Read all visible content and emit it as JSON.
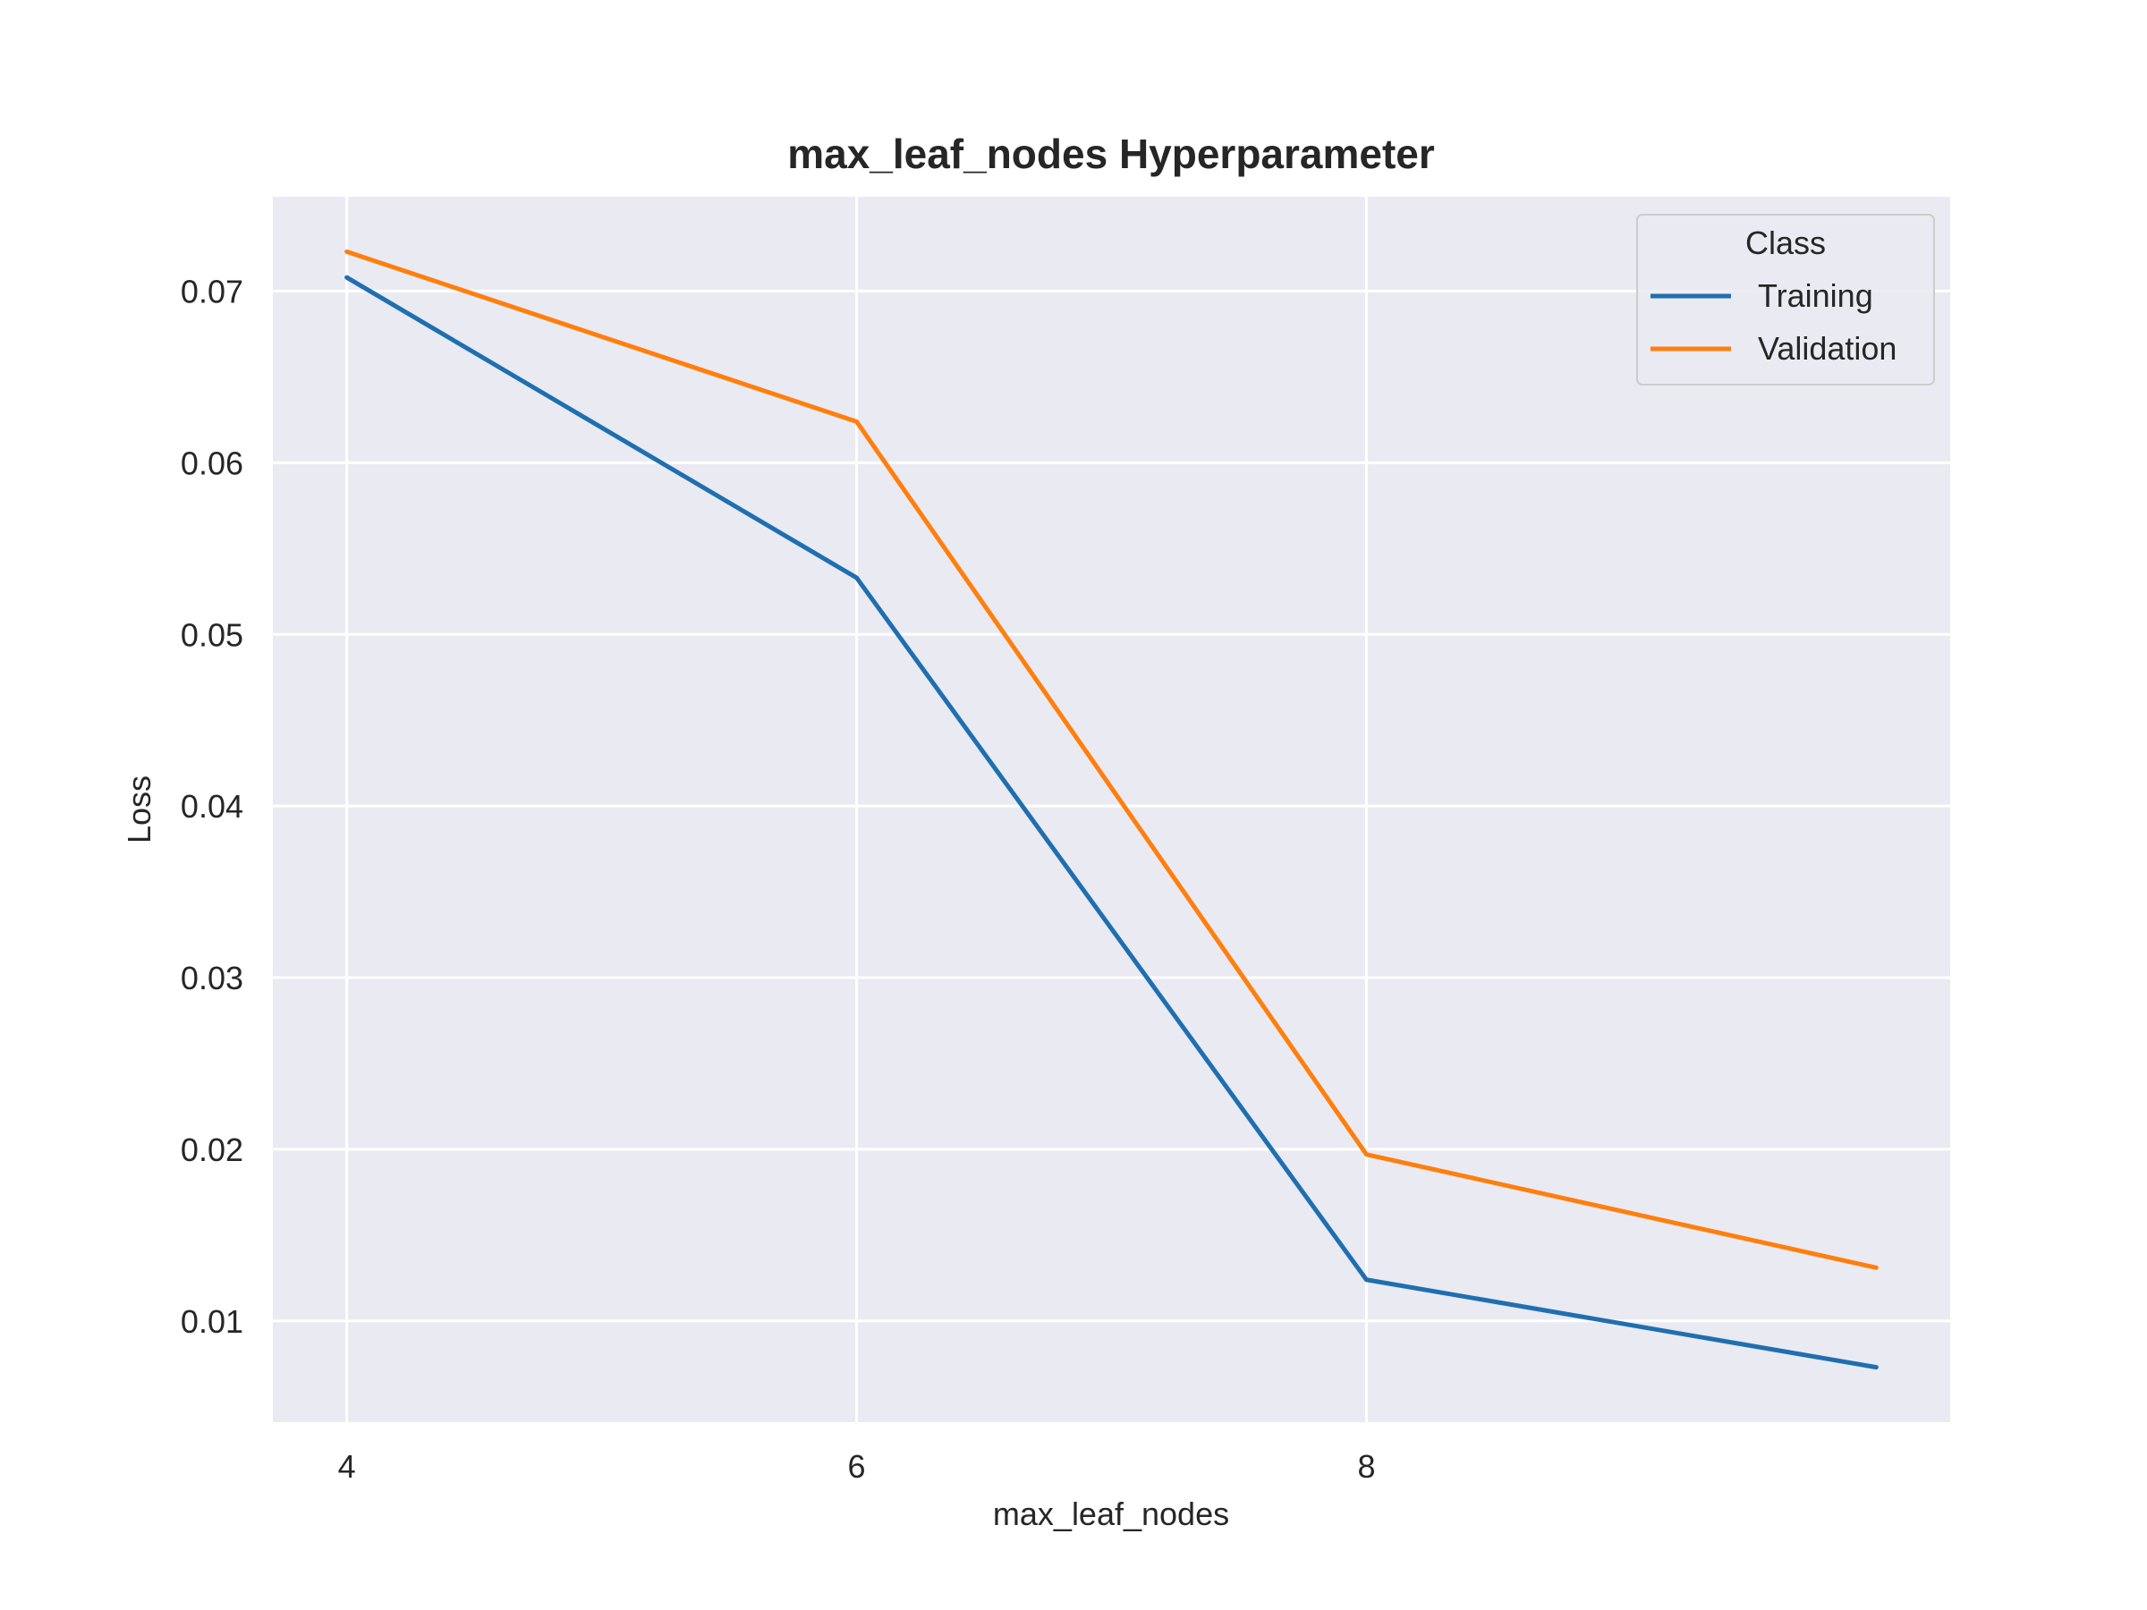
{
  "chart_data": {
    "type": "line",
    "title": "max_leaf_nodes Hyperparameter",
    "xlabel": "max_leaf_nodes",
    "ylabel": "Loss",
    "x": [
      4,
      6,
      8,
      10
    ],
    "xticks": [
      4,
      6,
      8
    ],
    "xtick_labels": [
      "4",
      "6",
      "8"
    ],
    "yticks": [
      0.01,
      0.02,
      0.03,
      0.04,
      0.05,
      0.06,
      0.07
    ],
    "ytick_labels": [
      "0.01",
      "0.02",
      "0.03",
      "0.04",
      "0.05",
      "0.06",
      "0.07"
    ],
    "xlim": [
      3.71,
      10.29
    ],
    "ylim": [
      0.0041,
      0.0755
    ],
    "grid": true,
    "legend": {
      "title": "Class",
      "placement": "top-right"
    },
    "series": [
      {
        "name": "Training",
        "color": "#1f6fb0",
        "values": [
          0.0708,
          0.0533,
          0.0124,
          0.0073
        ]
      },
      {
        "name": "Validation",
        "color": "#ff7f0e",
        "values": [
          0.0723,
          0.0624,
          0.0197,
          0.0131
        ]
      }
    ]
  }
}
